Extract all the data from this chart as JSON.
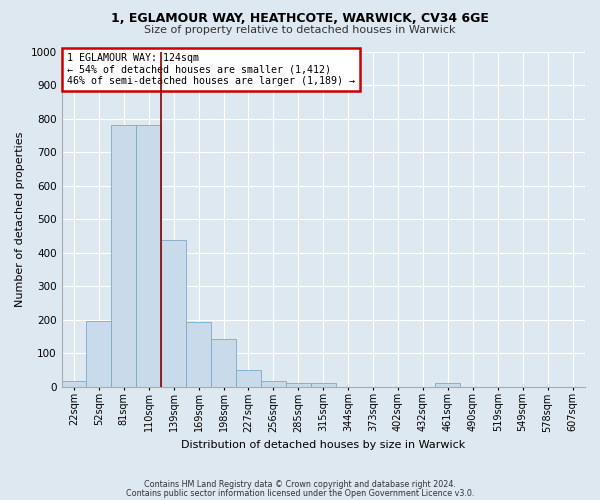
{
  "title1": "1, EGLAMOUR WAY, HEATHCOTE, WARWICK, CV34 6GE",
  "title2": "Size of property relative to detached houses in Warwick",
  "xlabel": "Distribution of detached houses by size in Warwick",
  "ylabel": "Number of detached properties",
  "bar_labels": [
    "22sqm",
    "52sqm",
    "81sqm",
    "110sqm",
    "139sqm",
    "169sqm",
    "198sqm",
    "227sqm",
    "256sqm",
    "285sqm",
    "315sqm",
    "344sqm",
    "373sqm",
    "402sqm",
    "432sqm",
    "461sqm",
    "490sqm",
    "519sqm",
    "549sqm",
    "578sqm",
    "607sqm"
  ],
  "bar_values": [
    18,
    197,
    780,
    780,
    437,
    193,
    143,
    50,
    17,
    10,
    10,
    0,
    0,
    0,
    0,
    10,
    0,
    0,
    0,
    0,
    0
  ],
  "bar_color": "#c9daea",
  "bar_edge_color": "#7aaac8",
  "background_color": "#dde8f0",
  "grid_color": "#ffffff",
  "vline_x": 3.48,
  "vline_color": "#8b0000",
  "annotation_text": "1 EGLAMOUR WAY: 124sqm\n← 54% of detached houses are smaller (1,412)\n46% of semi-detached houses are larger (1,189) →",
  "annotation_box_color": "#ffffff",
  "annotation_box_edge": "#cc0000",
  "ylim": [
    0,
    1000
  ],
  "yticks": [
    0,
    100,
    200,
    300,
    400,
    500,
    600,
    700,
    800,
    900,
    1000
  ],
  "footnote1": "Contains HM Land Registry data © Crown copyright and database right 2024.",
  "footnote2": "Contains public sector information licensed under the Open Government Licence v3.0."
}
